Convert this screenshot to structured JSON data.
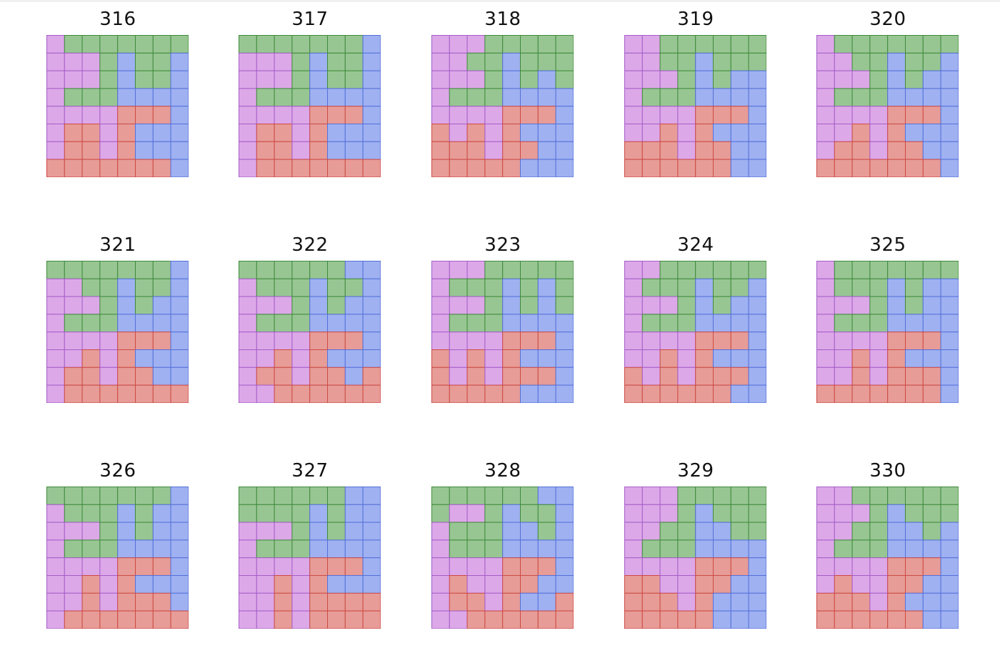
{
  "colors": {
    "P": {
      "fill": "#dda8e8",
      "stroke": "#a45ec9"
    },
    "G": {
      "fill": "#98c693",
      "stroke": "#3f8a3a"
    },
    "B": {
      "fill": "#9fb1f1",
      "stroke": "#5570d9"
    },
    "R": {
      "fill": "#e79c97",
      "stroke": "#cc4a45"
    }
  },
  "boards": [
    {
      "id": "316",
      "rows": [
        "PGGGGGGG",
        "PPPGBGGB",
        "PPPGBGGB",
        "PGGGBBBB",
        "PPPPRRRB",
        "PRRPRBBB",
        "PRRPRBBB",
        "RRRRRRRB"
      ]
    },
    {
      "id": "317",
      "rows": [
        "GGGGGGGB",
        "PPPGBGGB",
        "PPPGBGGB",
        "PGGGBBBB",
        "PPPPRRRB",
        "PRRPRBBB",
        "PRRPRBBB",
        "PRRRRRRR"
      ]
    },
    {
      "id": "318",
      "rows": [
        "PPPGGGGG",
        "PPGGBGGG",
        "PPPGBGBG",
        "PGGGBBBB",
        "PPPPRRRB",
        "RPRPRBBB",
        "RRRPRRBB",
        "RRRRRBBB"
      ]
    },
    {
      "id": "319",
      "rows": [
        "PPGGGGGG",
        "PPGGBGGG",
        "PPPGBGBB",
        "PGGGBBBB",
        "PPPPRRRB",
        "PPRPRBBB",
        "RRRPRRBB",
        "RRRRRRBB"
      ]
    },
    {
      "id": "320",
      "rows": [
        "PGGGGGGG",
        "PPGGBGGB",
        "PPPGBGBB",
        "PGGGBBBB",
        "PPPPRRRB",
        "PPRPRBBB",
        "PRRPRRBB",
        "RRRRRRRB"
      ]
    },
    {
      "id": "321",
      "rows": [
        "GGGGGGGB",
        "PPGGBGGB",
        "PPPGBGBB",
        "PGGGBBBB",
        "PPPPRRRB",
        "PPRPRBBB",
        "PRRPRRBB",
        "PRRRRRRR"
      ]
    },
    {
      "id": "322",
      "rows": [
        "GGGGGGBB",
        "PGGGBGGB",
        "PPPGBGBB",
        "PGGGBBBB",
        "PPPPRRRB",
        "PPRPRBBB",
        "PRRPRRBR",
        "PPRRRRRR"
      ]
    },
    {
      "id": "323",
      "rows": [
        "PPPGGGGG",
        "PGGGBGBG",
        "PPPGBGBG",
        "PGGGBBBB",
        "PPPPRRRB",
        "RPRPRBBB",
        "RPRPRRRB",
        "RRRRRBBB"
      ]
    },
    {
      "id": "324",
      "rows": [
        "PPGGGGGG",
        "PGGGBGGB",
        "PPPGBGBB",
        "PGGGBBBB",
        "PPPPRRRB",
        "PPRPRBBB",
        "RPRPRRRB",
        "RRRRRRBB"
      ]
    },
    {
      "id": "325",
      "rows": [
        "PGGGGGGG",
        "PGGGBGBB",
        "PPPGBGBB",
        "PGGGBBBB",
        "PPPPRRRB",
        "PPRPRBBB",
        "PPRPRRRB",
        "RRRRRRRB"
      ]
    },
    {
      "id": "326",
      "rows": [
        "GGGGGGGB",
        "PGGGBGBB",
        "PPPGBGBB",
        "PGGGBBBB",
        "PPPPRRRB",
        "PPRPRBBB",
        "PPRPRRRB",
        "PRRRRRRR"
      ]
    },
    {
      "id": "327",
      "rows": [
        "GGGGGGBB",
        "GGGGBGBB",
        "PPPGBGBB",
        "PGGGBBBB",
        "PPPPRRRB",
        "PPRPRBBB",
        "PPRPRRRR",
        "PPRPRRRR"
      ]
    },
    {
      "id": "328",
      "rows": [
        "GGGGGGBB",
        "GPPGBGGB",
        "PGGGBBGB",
        "PGGGBBBB",
        "PPPPRRRB",
        "PRPPRRBB",
        "PRRPRBBR",
        "PPRRRRRR"
      ]
    },
    {
      "id": "329",
      "rows": [
        "PPPGGGGG",
        "PPPGBGGG",
        "PPGGBBGG",
        "PGGGBBBB",
        "PPPPRRRB",
        "RRPPRRBB",
        "RRRPRBBB",
        "RRRRRBBB"
      ]
    },
    {
      "id": "330",
      "rows": [
        "PPGGGGGG",
        "PPPGBGGG",
        "PPGGBBGB",
        "PGGGBBBB",
        "PPPPRRRB",
        "PRPPRRBB",
        "RRRPRBBB",
        "RRRRRRBB"
      ]
    }
  ]
}
